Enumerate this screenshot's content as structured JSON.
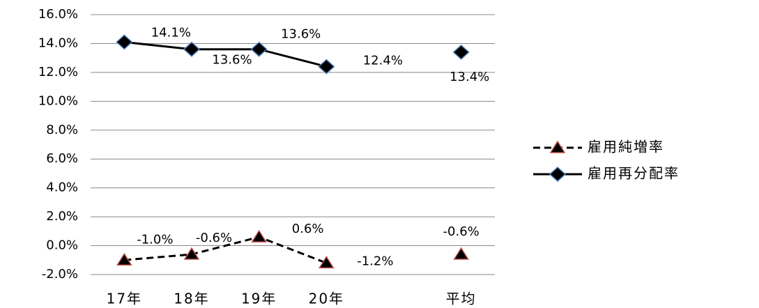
{
  "chart_data": {
    "type": "line",
    "categories": [
      "17年",
      "18年",
      "19年",
      "20年",
      null,
      "平均"
    ],
    "series": [
      {
        "name": "雇用純増率",
        "color": "#000000",
        "marker": "triangle",
        "marker_edge": "#c0504d",
        "dashed": true,
        "values": [
          -1.0,
          -0.6,
          0.6,
          -1.2,
          null,
          -0.6
        ],
        "value_labels": [
          "-1.0%",
          "-0.6%",
          "0.6%",
          "-1.2%",
          null,
          "-0.6%"
        ]
      },
      {
        "name": "雇用再分配率",
        "color": "#000000",
        "marker": "diamond",
        "marker_edge": "#4f81bd",
        "dashed": false,
        "values": [
          14.1,
          13.6,
          13.6,
          12.4,
          null,
          13.4
        ],
        "value_labels": [
          "14.1%",
          "13.6%",
          "13.6%",
          "12.4%",
          null,
          "13.4%"
        ]
      }
    ],
    "ylim": [
      -2,
      16
    ],
    "yticks": [
      {
        "value": -2,
        "label": "-2.0%"
      },
      {
        "value": 0,
        "label": "0.0%"
      },
      {
        "value": 2,
        "label": "2.0%"
      },
      {
        "value": 4,
        "label": "4.0%"
      },
      {
        "value": 6,
        "label": "6.0%"
      },
      {
        "value": 8,
        "label": "8.0%"
      },
      {
        "value": 10,
        "label": "10.0%"
      },
      {
        "value": 12,
        "label": "12.0%"
      },
      {
        "value": 14,
        "label": "14.0%"
      },
      {
        "value": 16,
        "label": "16.0%"
      }
    ],
    "grid": true,
    "legend": "right"
  }
}
